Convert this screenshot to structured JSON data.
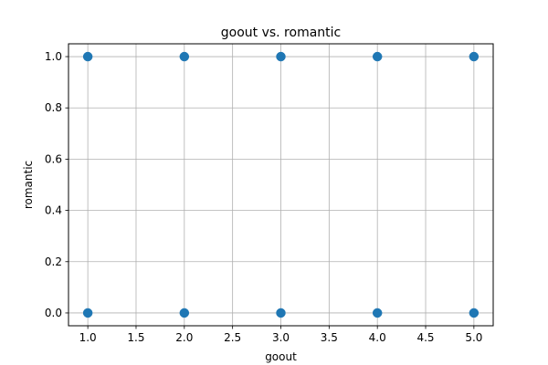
{
  "chart_data": {
    "type": "scatter",
    "title": "goout vs. romantic",
    "xlabel": "goout",
    "ylabel": "romantic",
    "xlim": [
      0.8,
      5.2
    ],
    "ylim": [
      -0.05,
      1.05
    ],
    "x_ticks": [
      1.0,
      1.5,
      2.0,
      2.5,
      3.0,
      3.5,
      4.0,
      4.5,
      5.0
    ],
    "y_ticks": [
      0.0,
      0.2,
      0.4,
      0.6,
      0.8,
      1.0
    ],
    "x_tick_labels": [
      "1.0",
      "1.5",
      "2.0",
      "2.5",
      "3.0",
      "3.5",
      "4.0",
      "4.5",
      "5.0"
    ],
    "y_tick_labels": [
      "0.0",
      "0.2",
      "0.4",
      "0.6",
      "0.8",
      "1.0"
    ],
    "grid": true,
    "marker_color": "#1f77b4",
    "points": [
      {
        "x": 1,
        "y": 1
      },
      {
        "x": 2,
        "y": 1
      },
      {
        "x": 3,
        "y": 1
      },
      {
        "x": 4,
        "y": 1
      },
      {
        "x": 5,
        "y": 1
      },
      {
        "x": 1,
        "y": 0
      },
      {
        "x": 2,
        "y": 0
      },
      {
        "x": 3,
        "y": 0
      },
      {
        "x": 4,
        "y": 0
      },
      {
        "x": 5,
        "y": 0
      }
    ]
  }
}
